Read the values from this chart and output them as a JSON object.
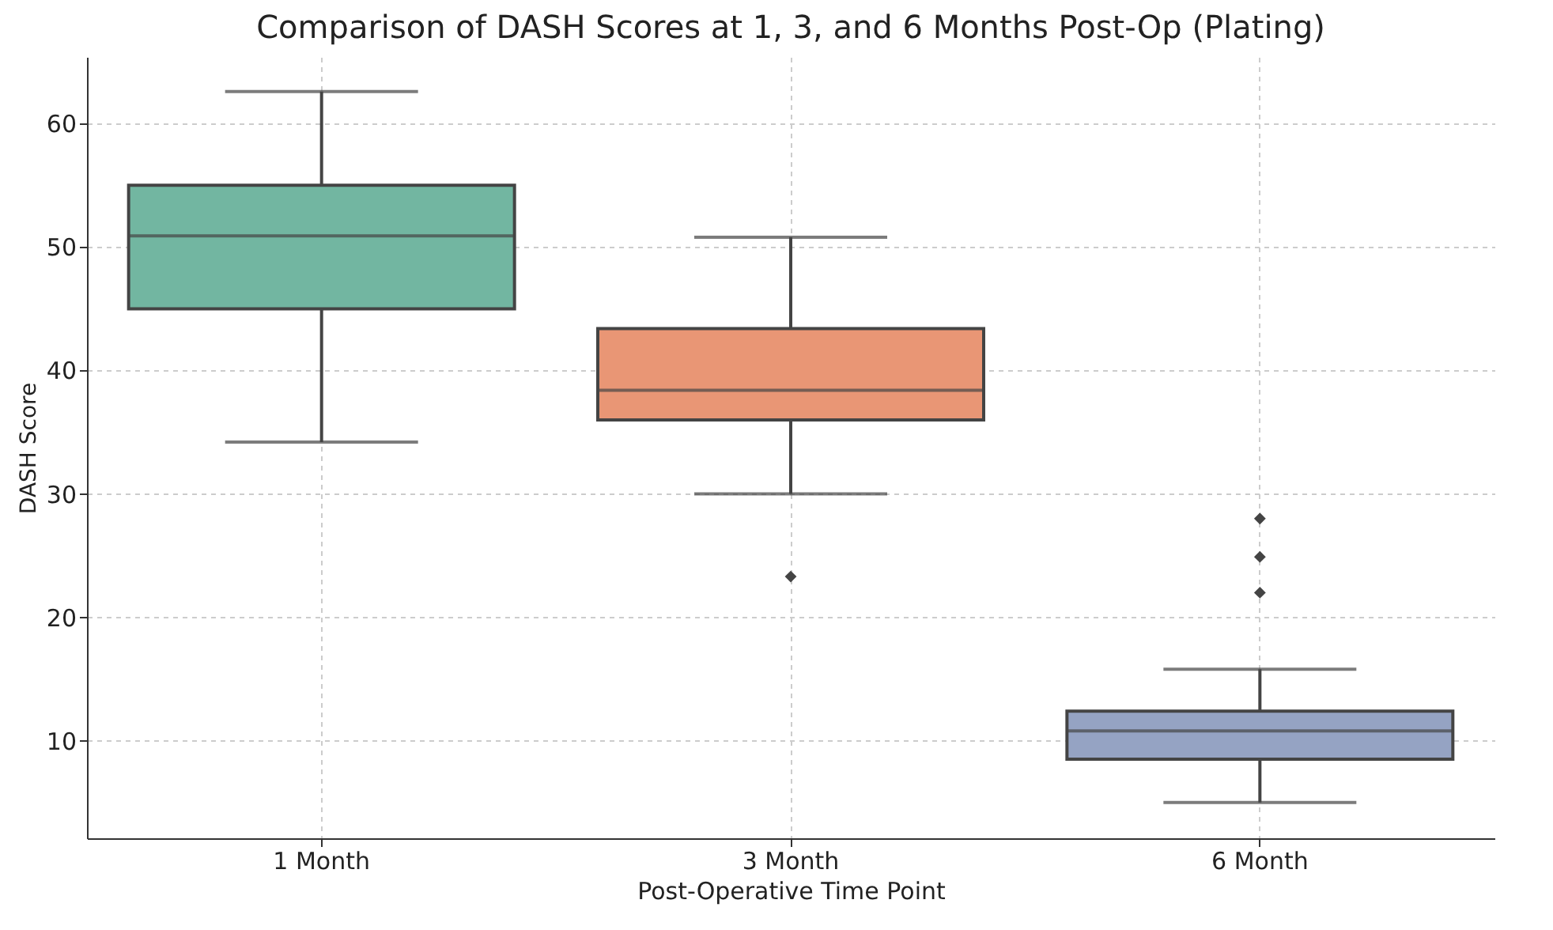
{
  "chart_data": {
    "type": "box",
    "title": "Comparison of DASH Scores at 1, 3, and 6 Months Post-Op (Plating)",
    "xlabel": "Post-Operative Time Point",
    "ylabel": "DASH Score",
    "categories": [
      "1 Month",
      "3 Month",
      "6 Month"
    ],
    "colors": [
      "#72b6a1",
      "#e99675",
      "#95a3c3"
    ],
    "boxes": [
      {
        "low": 34.2,
        "q1": 45.0,
        "median": 50.9,
        "q3": 55.0,
        "high": 62.6
      },
      {
        "low": 30.0,
        "q1": 36.0,
        "median": 38.4,
        "q3": 43.4,
        "high": 50.8,
        "outliers": [
          23.3
        ]
      },
      {
        "low": 5.0,
        "q1": 8.5,
        "median": 10.8,
        "q3": 12.4,
        "high": 15.8,
        "outliers": [
          28.0,
          24.9,
          22.0
        ]
      }
    ],
    "ylim": [
      2.1,
      65.4
    ],
    "yticks": [
      10,
      20,
      30,
      40,
      50,
      60
    ],
    "grid": true,
    "marker": "diamond"
  }
}
